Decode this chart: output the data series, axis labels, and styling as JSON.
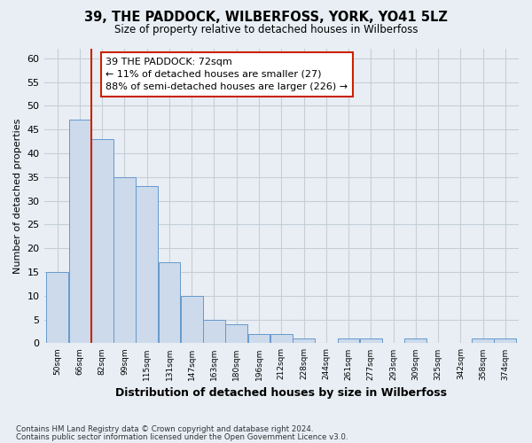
{
  "title": "39, THE PADDOCK, WILBERFOSS, YORK, YO41 5LZ",
  "subtitle": "Size of property relative to detached houses in Wilberfoss",
  "xlabel": "Distribution of detached houses by size in Wilberfoss",
  "ylabel": "Number of detached properties",
  "footnote1": "Contains HM Land Registry data © Crown copyright and database right 2024.",
  "footnote2": "Contains public sector information licensed under the Open Government Licence v3.0.",
  "annotation_title": "39 THE PADDOCK: 72sqm",
  "annotation_line1": "← 11% of detached houses are smaller (27)",
  "annotation_line2": "88% of semi-detached houses are larger (226) →",
  "bar_color": "#ccdaeb",
  "bar_edge_color": "#6699cc",
  "marker_line_color": "#cc2200",
  "annotation_box_edge": "#cc2200",
  "bin_labels": [
    "50sqm",
    "66sqm",
    "82sqm",
    "99sqm",
    "115sqm",
    "131sqm",
    "147sqm",
    "163sqm",
    "180sqm",
    "196sqm",
    "212sqm",
    "228sqm",
    "244sqm",
    "261sqm",
    "277sqm",
    "293sqm",
    "309sqm",
    "325sqm",
    "342sqm",
    "358sqm",
    "374sqm"
  ],
  "bar_heights": [
    15,
    47,
    43,
    35,
    33,
    17,
    10,
    5,
    4,
    2,
    2,
    1,
    0,
    1,
    1,
    0,
    1,
    0,
    0,
    1,
    1
  ],
  "marker_bin_index": 1,
  "ylim": [
    0,
    62
  ],
  "yticks": [
    0,
    5,
    10,
    15,
    20,
    25,
    30,
    35,
    40,
    45,
    50,
    55,
    60
  ],
  "grid_color": "#c5cfd8",
  "background_color": "#e8eef4"
}
